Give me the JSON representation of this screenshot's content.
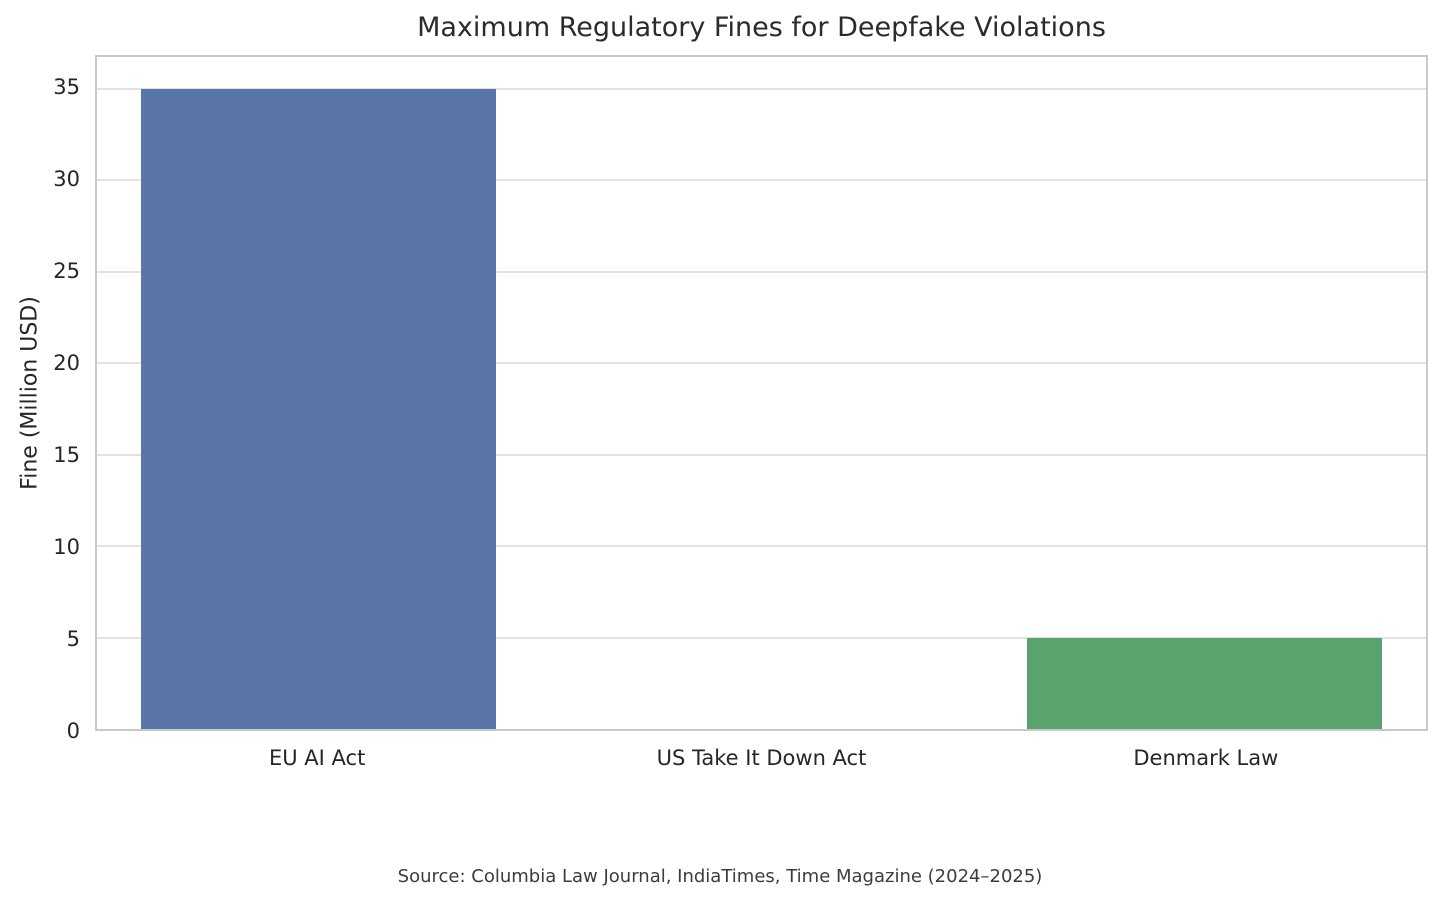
{
  "source_note": "Source: Columbia Law Journal, IndiaTimes, Time Magazine (2024–2025)",
  "chart_data": {
    "type": "bar",
    "title": "Maximum Regulatory Fines for Deepfake Violations",
    "categories": [
      "EU AI Act",
      "US Take It Down Act",
      "Denmark Law"
    ],
    "values": [
      35,
      0,
      5
    ],
    "xlabel": "",
    "ylabel": "Fine (Million USD)",
    "yticks": [
      0,
      5,
      10,
      15,
      20,
      25,
      30,
      35
    ],
    "ylim": [
      0,
      36.75
    ],
    "grid": true,
    "legend": false,
    "bar_colors": [
      "#5a76a8",
      null,
      "#5ba36e"
    ],
    "annotation": "Source: Columbia Law Journal, IndiaTimes, Time Magazine (2024–2025)"
  },
  "style": {
    "grid_color": "#e2e2e2",
    "spine_color": "#c9c9c9",
    "text_color": "#262626",
    "background": "#ffffff"
  }
}
